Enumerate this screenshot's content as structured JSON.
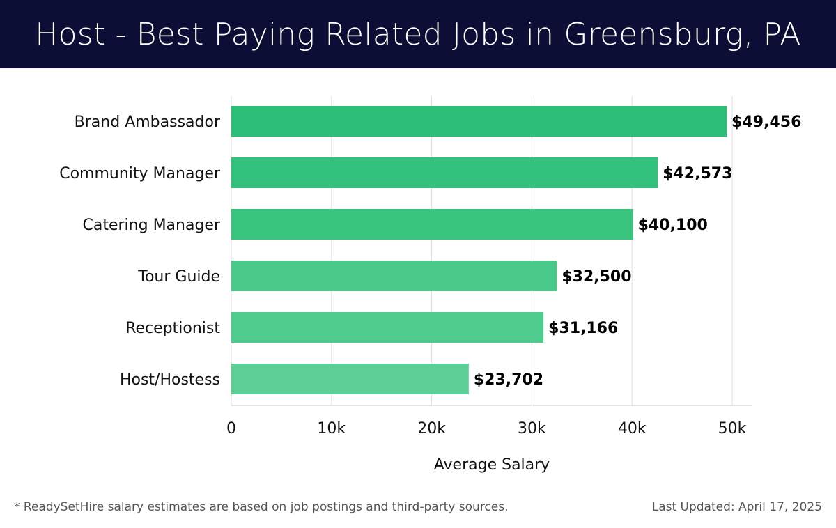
{
  "header": {
    "title": "Host - Best Paying Related Jobs in Greensburg, PA"
  },
  "chart_data": {
    "type": "bar",
    "orientation": "horizontal",
    "title": "Host - Best Paying Related Jobs in Greensburg, PA",
    "categories": [
      "Brand Ambassador",
      "Community Manager",
      "Catering Manager",
      "Tour Guide",
      "Receptionist",
      "Host/Hostess"
    ],
    "values": [
      49456,
      42573,
      40100,
      32500,
      31166,
      23702
    ],
    "value_labels": [
      "$49,456",
      "$42,573",
      "$40,100",
      "$32,500",
      "$31,166",
      "$23,702"
    ],
    "xlabel": "Average Salary",
    "ylabel": "",
    "xlim": [
      0,
      52000
    ],
    "ticks": [
      0,
      10000,
      20000,
      30000,
      40000,
      50000
    ],
    "tick_labels": [
      "0",
      "10k",
      "20k",
      "30k",
      "40k",
      "50k"
    ],
    "grid": true,
    "colors": [
      "#2bbf77",
      "#33c27b",
      "#3ac57f",
      "#4bc98b",
      "#50cb8e",
      "#5ccf96"
    ]
  },
  "footer": {
    "note": "* ReadySetHire salary estimates are based on job postings and third-party sources.",
    "updated": "Last Updated: April 17, 2025"
  }
}
